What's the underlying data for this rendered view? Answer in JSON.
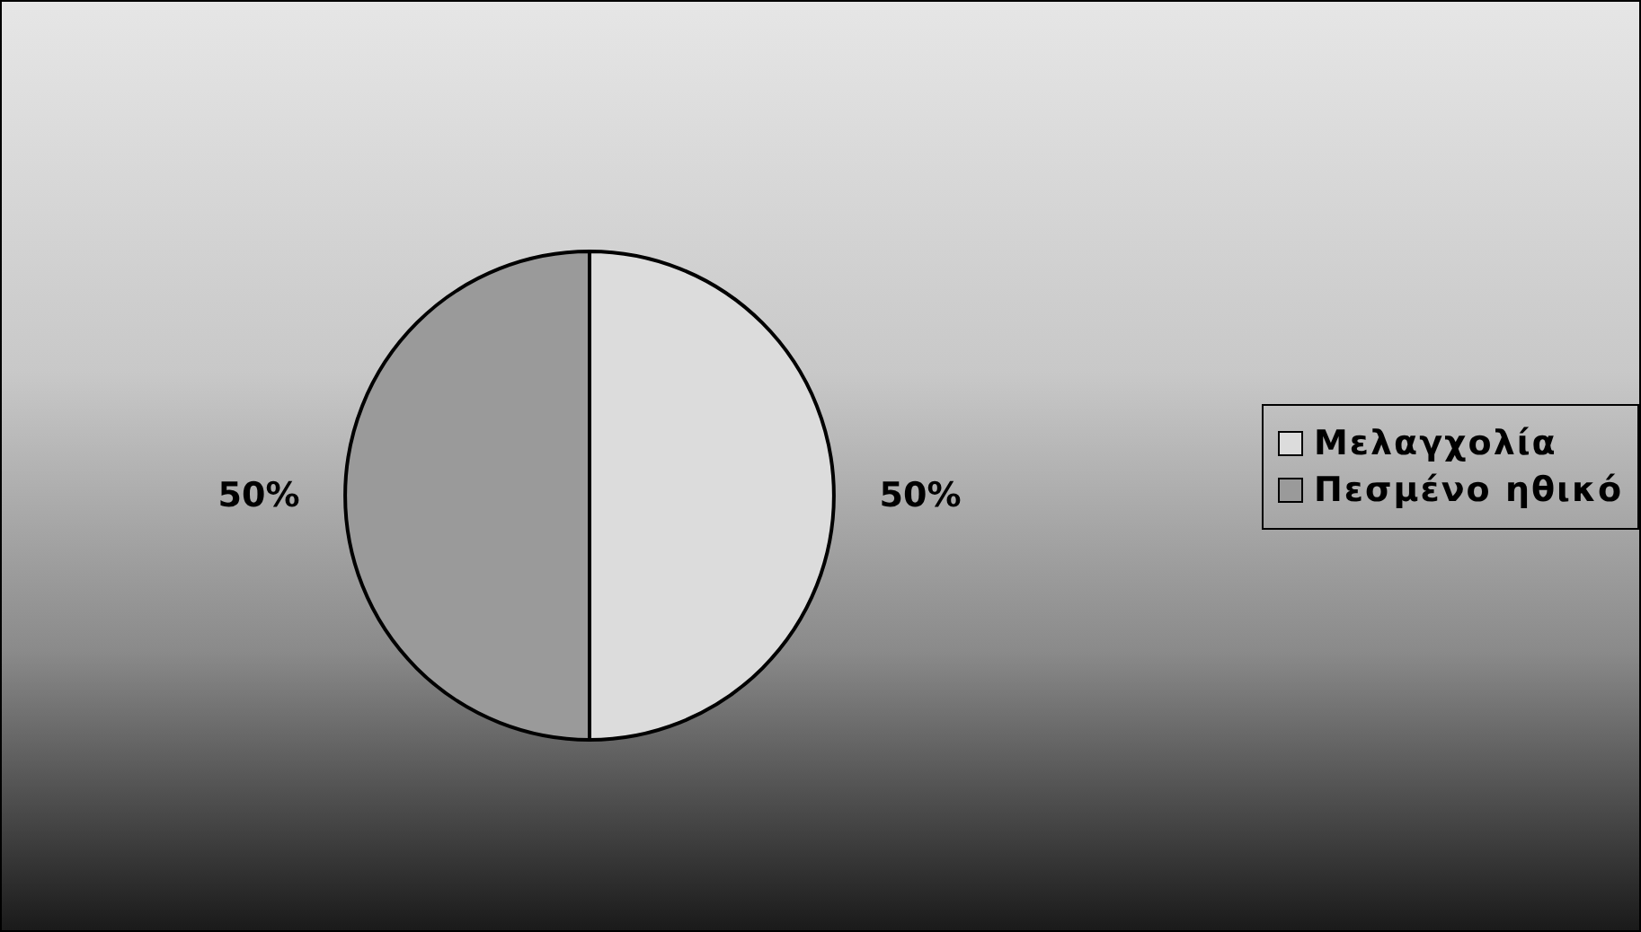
{
  "chart_data": {
    "type": "pie",
    "categories": [
      "Μελαγχολία",
      "Πεσμένο ηθικό"
    ],
    "values": [
      50,
      50
    ],
    "colors": [
      "#dcdcdc",
      "#9a9a9a"
    ],
    "value_labels": [
      "50%",
      "50%"
    ],
    "legend": "right"
  }
}
